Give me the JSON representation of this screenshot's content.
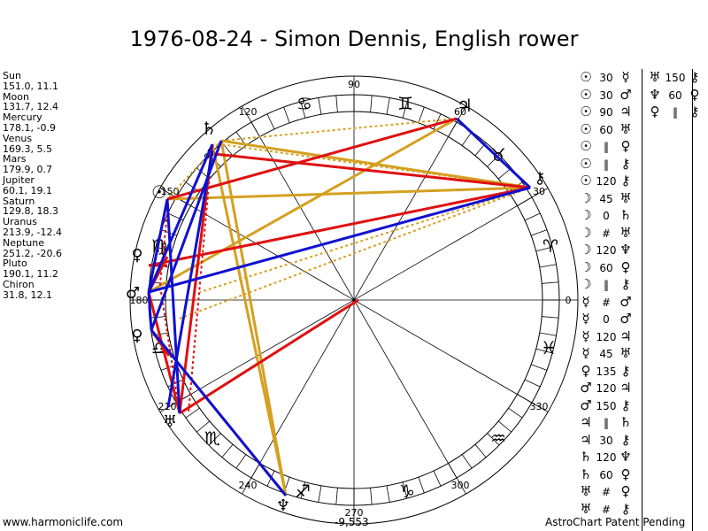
{
  "title": "1976-08-24 - Simon Dennis, English rower",
  "planets": [
    {
      "name": "Sun",
      "coords": "151.0, 11.1"
    },
    {
      "name": "Moon",
      "coords": "131.7, 12.4"
    },
    {
      "name": "Mercury",
      "coords": "178.1, -0.9"
    },
    {
      "name": "Venus",
      "coords": "169.3, 5.5"
    },
    {
      "name": "Mars",
      "coords": "179.9, 0.7"
    },
    {
      "name": "Jupiter",
      "coords": "60.1, 19.1"
    },
    {
      "name": "Saturn",
      "coords": "129.8, 18.3"
    },
    {
      "name": "Uranus",
      "coords": "213.9, -12.4"
    },
    {
      "name": "Neptune",
      "coords": "251.2, -20.6"
    },
    {
      "name": "Pluto",
      "coords": "190.1, 11.2"
    },
    {
      "name": "Chiron",
      "coords": "31.8, 12.1"
    }
  ],
  "degree_labels": {
    "d90": "90",
    "d120": "120",
    "d60": "60",
    "d30": "30",
    "d0": "0",
    "d150": "150",
    "d180": "180",
    "d210": "210",
    "d240": "240",
    "d270": "270",
    "d300": "300",
    "d330": "330"
  },
  "footer": {
    "left": "www.harmoniclife.com",
    "mid": "-9,553",
    "right": "AstroChart Patent Pending"
  },
  "aspects_col1": [
    {
      "a": "☉",
      "ang": "30",
      "b": "☿"
    },
    {
      "a": "☉",
      "ang": "30",
      "b": "♂"
    },
    {
      "a": "☉",
      "ang": "90",
      "b": "♃"
    },
    {
      "a": "☉",
      "ang": "60",
      "b": "♅"
    },
    {
      "a": "☉",
      "ang": "‖",
      "b": "♀"
    },
    {
      "a": "☉",
      "ang": "‖",
      "b": "⚷"
    },
    {
      "a": "☉",
      "ang": "120",
      "b": "⚷"
    },
    {
      "a": "☽",
      "ang": "45",
      "b": "♅"
    },
    {
      "a": "☽",
      "ang": "0",
      "b": "♄"
    },
    {
      "a": "☽",
      "ang": "#",
      "b": "♅"
    },
    {
      "a": "☽",
      "ang": "120",
      "b": "♆"
    },
    {
      "a": "☽",
      "ang": "60",
      "b": "♀"
    },
    {
      "a": "☽",
      "ang": "‖",
      "b": "⚷"
    },
    {
      "a": "☿",
      "ang": "#",
      "b": "♂"
    },
    {
      "a": "☿",
      "ang": "0",
      "b": "♂"
    },
    {
      "a": "☿",
      "ang": "120",
      "b": "♃"
    },
    {
      "a": "☿",
      "ang": "45",
      "b": "♅"
    },
    {
      "a": "♀",
      "ang": "135",
      "b": "⚷"
    },
    {
      "a": "♂",
      "ang": "120",
      "b": "♃"
    },
    {
      "a": "♂",
      "ang": "150",
      "b": "⚷"
    },
    {
      "a": "♃",
      "ang": "‖",
      "b": "♄"
    },
    {
      "a": "♃",
      "ang": "30",
      "b": "⚷"
    },
    {
      "a": "♄",
      "ang": "120",
      "b": "♆"
    },
    {
      "a": "♄",
      "ang": "60",
      "b": "♀"
    },
    {
      "a": "♅",
      "ang": "#",
      "b": "♀"
    },
    {
      "a": "♅",
      "ang": "#",
      "b": "⚷"
    }
  ],
  "aspects_col2": [
    {
      "a": "♅",
      "ang": "150",
      "b": "⚷"
    },
    {
      "a": "♆",
      "ang": "60",
      "b": "♀"
    },
    {
      "a": "♀",
      "ang": "‖",
      "b": "⚷"
    }
  ],
  "glyphs": {
    "sun": "☉",
    "moon": "☽",
    "mercury": "☿",
    "venus": "♀",
    "mars": "♂",
    "jupiter": "♃",
    "saturn": "♄",
    "uranus": "♅",
    "neptune": "♆",
    "pluto": "♀",
    "chiron": "⚷"
  },
  "signs": {
    "aries": "♈",
    "taurus": "♉",
    "gemini": "♊",
    "cancer": "♋",
    "leo": "♌",
    "virgo": "♍",
    "libra": "♎",
    "scorpio": "♏",
    "sagittarius": "♐",
    "capricorn": "♑",
    "aquarius": "♒",
    "pisces": "♓"
  },
  "colors": {
    "red": "#e01010",
    "blue": "#1010d0",
    "gold": "#d4a020"
  }
}
